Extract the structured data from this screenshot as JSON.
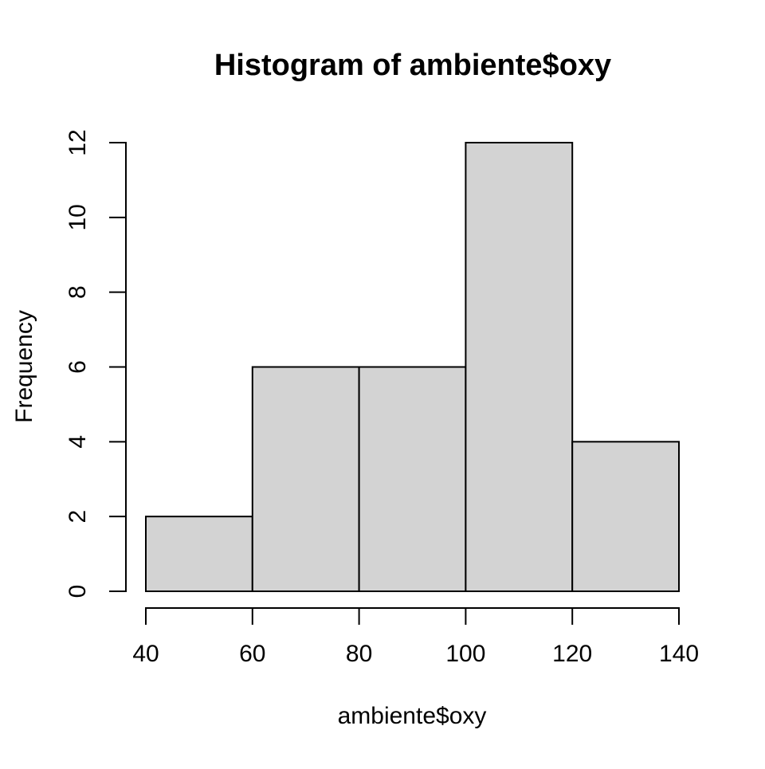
{
  "chart_data": {
    "type": "bar",
    "subtype": "histogram",
    "title": "Histogram of ambiente$oxy",
    "xlabel": "ambiente$oxy",
    "ylabel": "Frequency",
    "breaks": [
      40,
      60,
      80,
      100,
      120,
      140
    ],
    "counts": [
      2,
      6,
      6,
      12,
      4
    ],
    "bins": [
      {
        "range": "40-60",
        "frequency": 2
      },
      {
        "range": "60-80",
        "frequency": 6
      },
      {
        "range": "80-100",
        "frequency": 6
      },
      {
        "range": "100-120",
        "frequency": 12
      },
      {
        "range": "120-140",
        "frequency": 4
      }
    ],
    "x_ticks": [
      40,
      60,
      80,
      100,
      120,
      140
    ],
    "y_ticks": [
      0,
      2,
      4,
      6,
      8,
      10,
      12
    ],
    "xlim": [
      40,
      140
    ],
    "ylim": [
      0,
      12
    ],
    "grid": false,
    "legend": "none",
    "colors": {
      "bar_fill": "#d3d3d3",
      "bar_stroke": "#000000",
      "axis": "#000000",
      "text": "#000000",
      "background": "#ffffff"
    }
  }
}
